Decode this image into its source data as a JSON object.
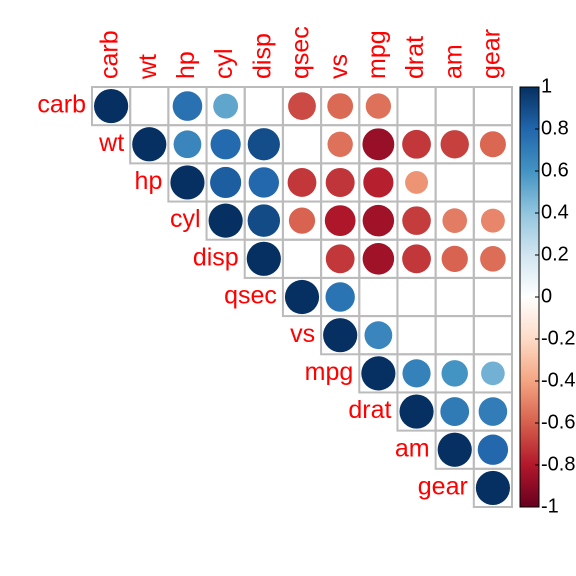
{
  "chart_data": {
    "type": "corrplot",
    "variables": [
      "carb",
      "wt",
      "hp",
      "cyl",
      "disp",
      "qsec",
      "vs",
      "mpg",
      "drat",
      "am",
      "gear"
    ],
    "matrix": [
      [
        1,
        null,
        0.75,
        0.53,
        null,
        -0.66,
        -0.57,
        -0.55,
        null,
        null,
        null
      ],
      [
        null,
        1,
        0.66,
        0.78,
        0.89,
        null,
        -0.55,
        -0.87,
        -0.71,
        -0.69,
        -0.58
      ],
      [
        null,
        null,
        1,
        0.83,
        0.79,
        -0.71,
        -0.72,
        -0.78,
        -0.45,
        null,
        null
      ],
      [
        null,
        null,
        null,
        1,
        0.9,
        -0.59,
        -0.81,
        -0.85,
        -0.7,
        -0.52,
        -0.49
      ],
      [
        null,
        null,
        null,
        null,
        1,
        null,
        -0.71,
        -0.85,
        -0.71,
        -0.59,
        -0.56
      ],
      [
        null,
        null,
        null,
        null,
        null,
        1,
        0.74,
        null,
        null,
        null,
        null
      ],
      [
        null,
        null,
        null,
        null,
        null,
        null,
        1,
        0.66,
        null,
        null,
        null
      ],
      [
        null,
        null,
        null,
        null,
        null,
        null,
        null,
        1,
        0.68,
        0.6,
        0.48
      ],
      [
        null,
        null,
        null,
        null,
        null,
        null,
        null,
        null,
        1,
        0.71,
        0.7
      ],
      [
        null,
        null,
        null,
        null,
        null,
        null,
        null,
        null,
        null,
        1,
        0.79
      ],
      [
        null,
        null,
        null,
        null,
        null,
        null,
        null,
        null,
        null,
        null,
        1
      ]
    ],
    "colors": [
      "#67001F",
      "#B2182B",
      "#D6604D",
      "#F4A582",
      "#FDDBC7",
      "#FFFFFF",
      "#D1E5F0",
      "#92C5DE",
      "#4393C3",
      "#2166AC",
      "#053061"
    ],
    "clim": [
      -1,
      1
    ],
    "cticks": [
      -1,
      -0.8,
      -0.6,
      -0.4,
      -0.2,
      0,
      0.2,
      0.4,
      0.6,
      0.8,
      1
    ]
  }
}
